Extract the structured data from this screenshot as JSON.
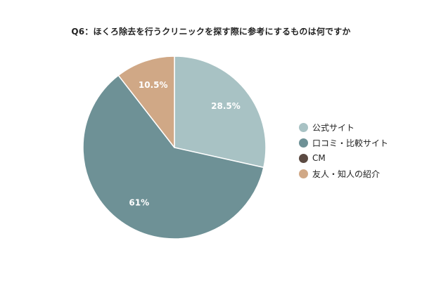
{
  "chart_data": {
    "type": "pie",
    "title": "Q6：ほくろ除去を行うクリニックを探す際に参考にするものは何ですか",
    "legend_position": "right",
    "slices": [
      {
        "label": "公式サイト",
        "value": 28.5,
        "display": "28.5%",
        "color": "#a8c2c4"
      },
      {
        "label": "口コミ・比較サイト",
        "value": 61,
        "display": "61%",
        "color": "#6e9196"
      },
      {
        "label": "CM",
        "value": 0,
        "display": "",
        "color": "#5b4a42"
      },
      {
        "label": "友人・知人の紹介",
        "value": 10.5,
        "display": "10.5%",
        "color": "#d0a886"
      }
    ]
  }
}
